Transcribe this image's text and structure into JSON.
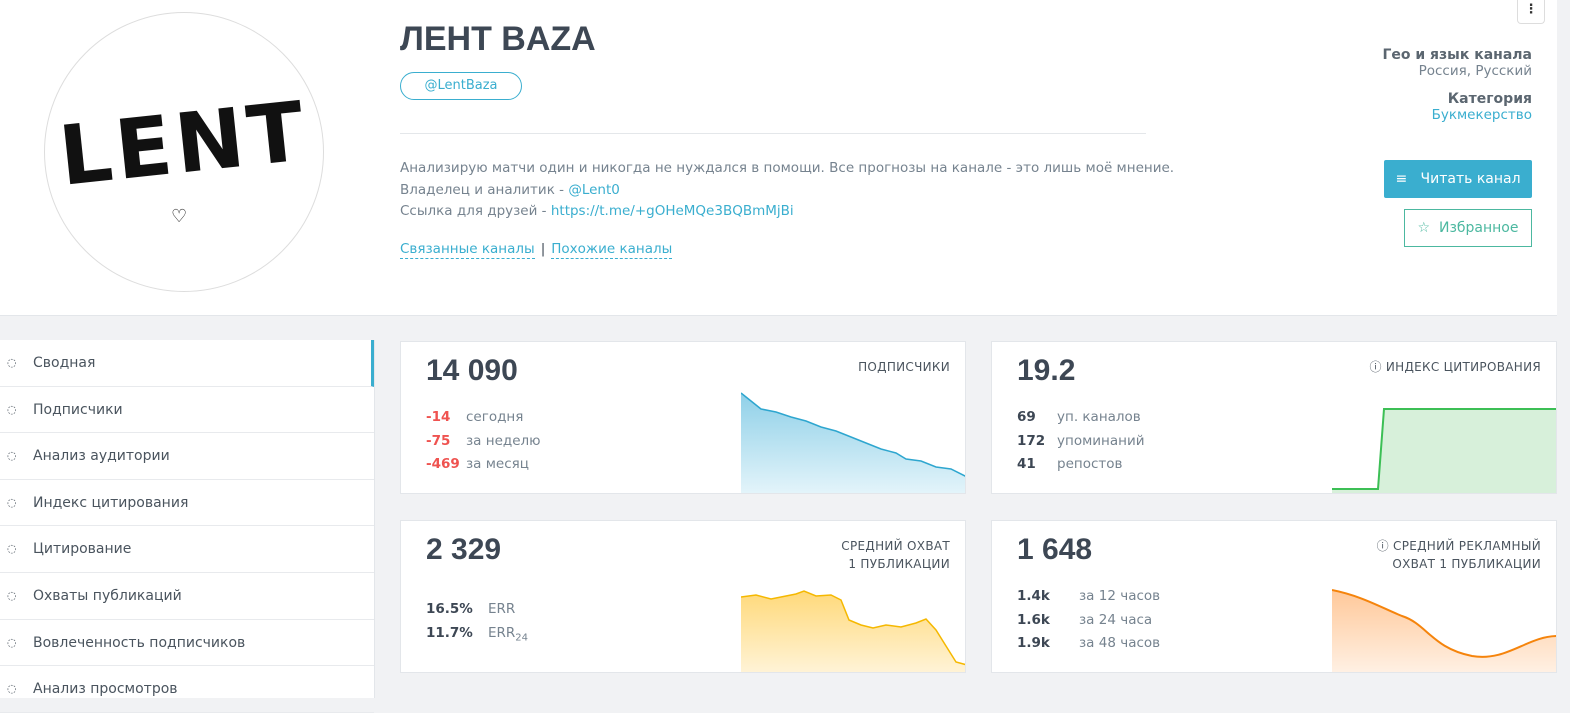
{
  "header": {
    "avatar_text": "LENT",
    "title": "ЛЕНТ BAZA",
    "handle": "@LentBaza",
    "description": {
      "line1": "Анализирую матчи один и никогда не нуждался в помощи. Все прогнозы на канале - это лишь моё мнение.",
      "line2_prefix": "Владелец и аналитик - ",
      "line2_link": "@Lent0",
      "line3_prefix": "Ссылка для друзей - ",
      "line3_link": "https://t.me/+gOHeMQe3BQBmMjBi"
    },
    "links": [
      "Связанные каналы",
      "|",
      "Похожие каналы"
    ],
    "geo_label": "Гео и язык канала",
    "geo_value": "Россия, Русский",
    "category_label": "Категория",
    "category_value": "Букмекерство",
    "read_button": "Читать канал",
    "favorite_button": "Избранное"
  },
  "sidebar": {
    "items": [
      "Сводная",
      "Подписчики",
      "Анализ аудитории",
      "Индекс цитирования",
      "Цитирование",
      "Охваты публикаций",
      "Вовлеченность подписчиков",
      "Анализ просмотров"
    ]
  },
  "cards": [
    {
      "value": "14 090",
      "label": [
        "ПОДПИСЧИКИ"
      ],
      "rows": [
        [
          "-14",
          "сегодня"
        ],
        [
          "-75",
          "за неделю"
        ],
        [
          "-469",
          "за месяц"
        ]
      ]
    },
    {
      "value": "19.2",
      "label": [
        "ИНДЕКС ЦИТИРОВАНИЯ"
      ],
      "rows": [
        [
          "69",
          "уп. каналов"
        ],
        [
          "172",
          "упоминаний"
        ],
        [
          "41",
          "репостов"
        ]
      ]
    },
    {
      "value": "2 329",
      "label": [
        "СРЕДНИЙ ОХВАТ",
        "1 ПУБЛИКАЦИИ"
      ],
      "rows": [
        [
          "16.5%",
          "ERR"
        ],
        [
          "11.7%",
          "ERR",
          "24"
        ]
      ]
    },
    {
      "value": "1 648",
      "label": [
        "СРЕДНИЙ РЕКЛАМНЫЙ",
        "ОХВАТ 1 ПУБЛИКАЦИИ"
      ],
      "rows": [
        [
          "1.4k",
          "за 12 часов"
        ],
        [
          "1.6k",
          "за 24 часа"
        ],
        [
          "1.9k",
          "за 48 часов"
        ]
      ]
    }
  ]
}
